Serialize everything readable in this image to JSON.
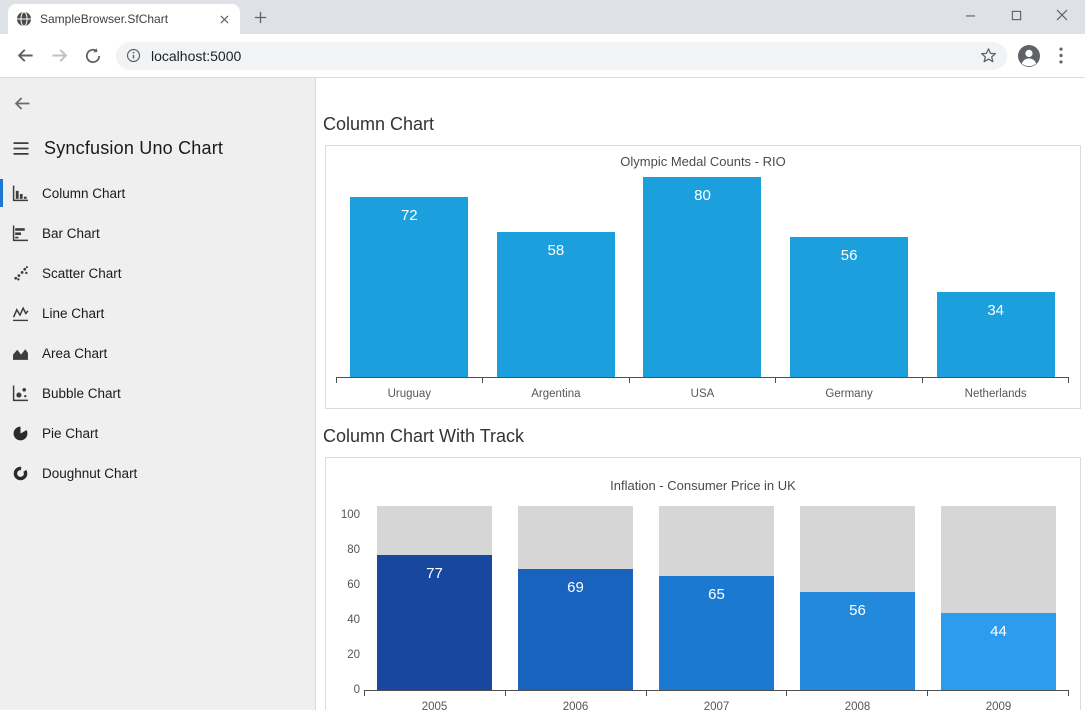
{
  "browser": {
    "tab_title": "SampleBrowser.SfChart",
    "url": "localhost:5000"
  },
  "sidebar": {
    "title": "Syncfusion Uno Chart",
    "items": [
      {
        "label": "Column Chart",
        "selected": true
      },
      {
        "label": "Bar Chart",
        "selected": false
      },
      {
        "label": "Scatter Chart",
        "selected": false
      },
      {
        "label": "Line Chart",
        "selected": false
      },
      {
        "label": "Area Chart",
        "selected": false
      },
      {
        "label": "Bubble Chart",
        "selected": false
      },
      {
        "label": "Pie Chart",
        "selected": false
      },
      {
        "label": "Doughnut Chart",
        "selected": false
      }
    ]
  },
  "main": {
    "section1_heading": "Column Chart",
    "section2_heading": "Column Chart With Track"
  },
  "chart_data": [
    {
      "type": "bar",
      "title": "Olympic Medal Counts - RIO",
      "categories": [
        "Uruguay",
        "Argentina",
        "USA",
        "Germany",
        "Netherlands"
      ],
      "values": [
        72,
        58,
        80,
        56,
        34
      ],
      "bar_color": "#1CA0DD",
      "data_label_color": "#FFFFFF",
      "data_labels": "inside-top",
      "ylim": [
        0,
        80
      ],
      "grid": false,
      "legend": "none"
    },
    {
      "type": "bar",
      "title": "Inflation - Consumer Price in UK",
      "categories": [
        "2005",
        "2006",
        "2007",
        "2008",
        "2009"
      ],
      "values": [
        77,
        69,
        65,
        56,
        44
      ],
      "bar_colors": [
        "#17479E",
        "#1763BE",
        "#1C79D2",
        "#2289DD",
        "#2D9CEE"
      ],
      "track_color": "#D6D6D6",
      "data_label_color": "#FFFFFF",
      "data_labels": "inside-top",
      "ylim": [
        0,
        105
      ],
      "yticks": [
        0,
        20,
        40,
        60,
        80,
        100
      ],
      "grid": false,
      "legend": "none"
    }
  ],
  "colors": {
    "accent": "#2077D2",
    "sidebar_bg": "#EFEFEF",
    "tabstrip_bg": "#DEE1E6",
    "omnibox_bg": "#F1F3F4"
  }
}
